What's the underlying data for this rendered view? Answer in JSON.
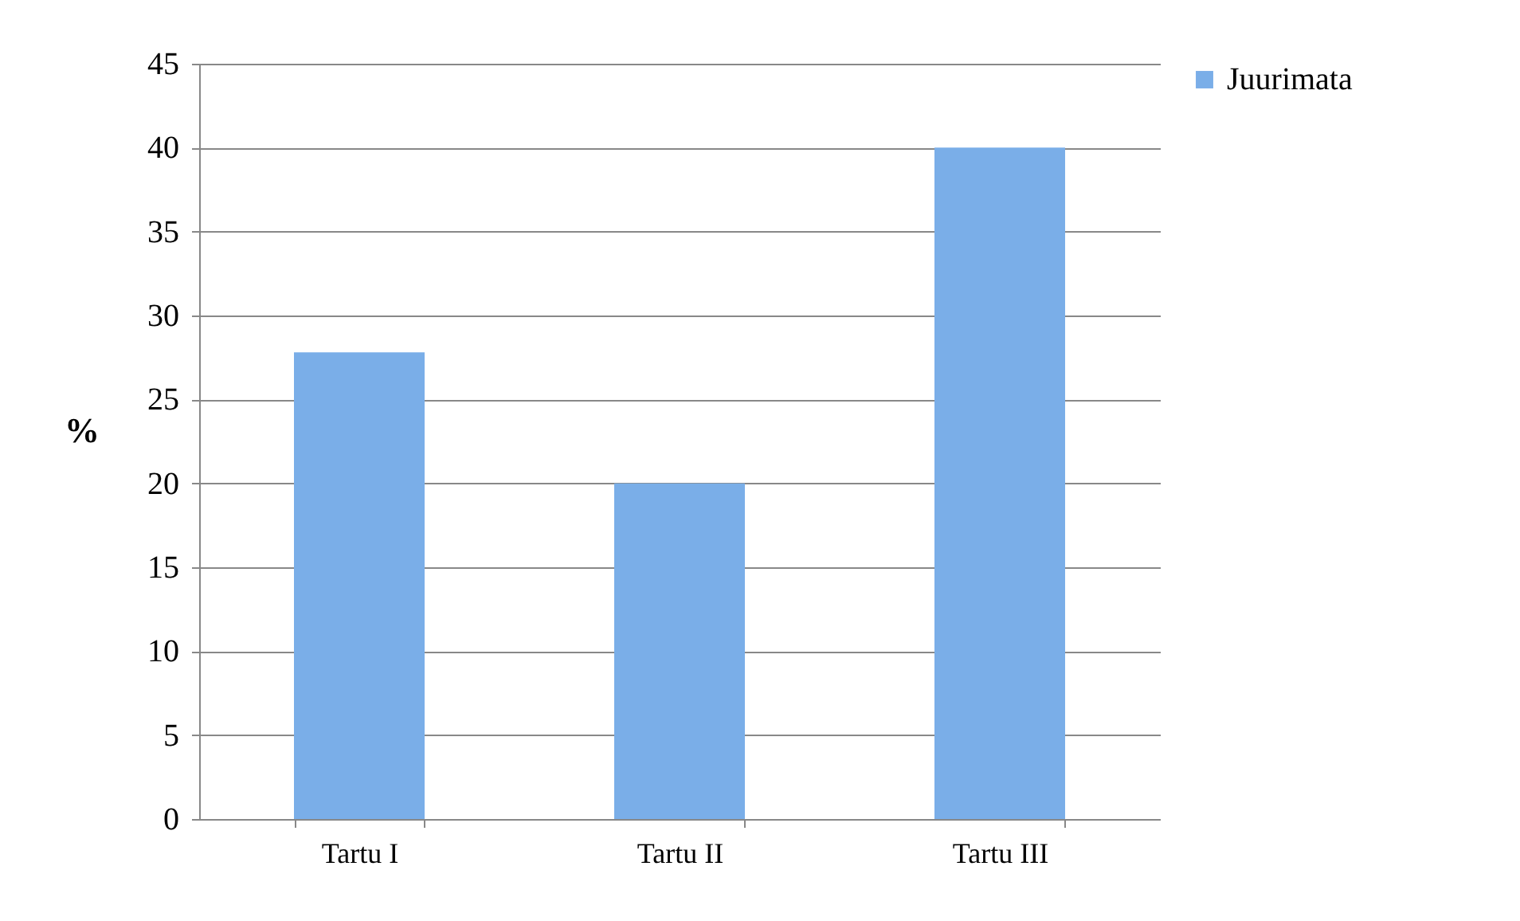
{
  "chart_data": {
    "type": "bar",
    "ylabel": "%",
    "categories": [
      "Tartu I",
      "Tartu II",
      "Tartu III"
    ],
    "series": [
      {
        "name": "Juurimata",
        "color": "#7aaee8",
        "values": [
          27.8,
          20,
          40
        ]
      }
    ],
    "ylim": [
      0,
      45
    ],
    "yticks": [
      0,
      5,
      10,
      15,
      20,
      25,
      30,
      35,
      40,
      45
    ],
    "grid": "y",
    "legend": "right"
  }
}
